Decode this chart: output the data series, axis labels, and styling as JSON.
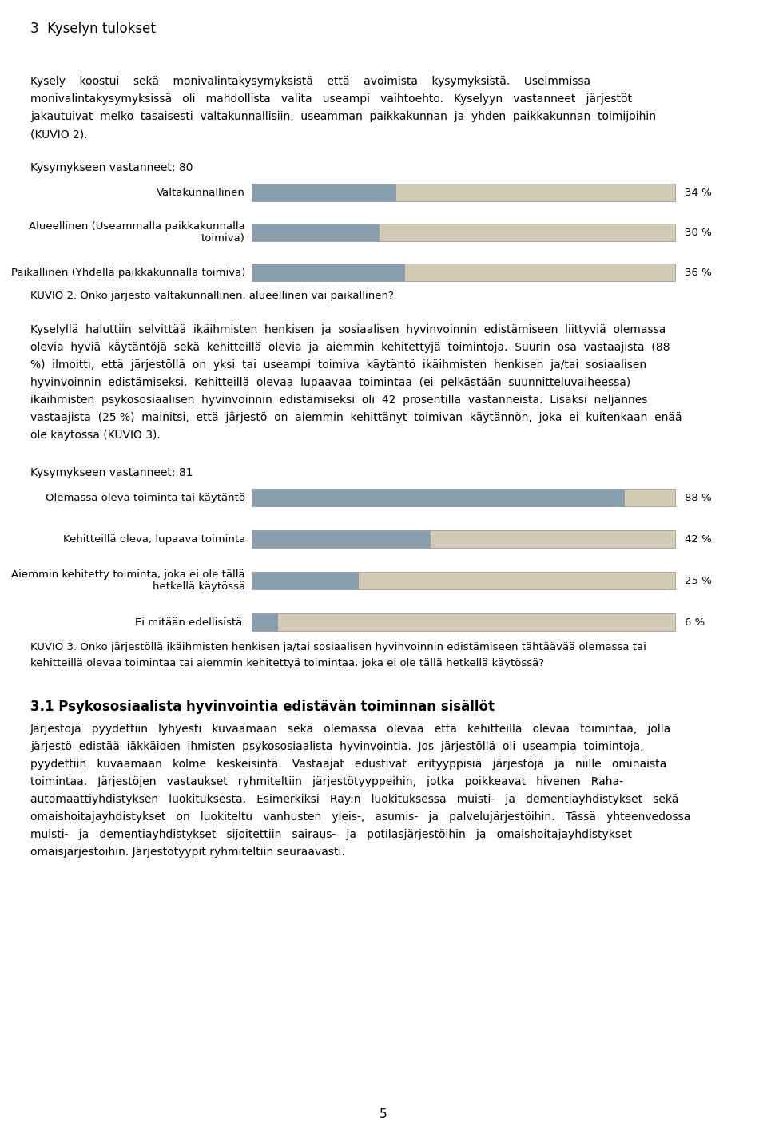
{
  "page_title": "3  Kyselyn tulokset",
  "para1_lines": [
    "Kysely    koostui    sekä    monivalintakysymyksistä    että    avoimista    kysymyksistä.    Useimmissa",
    "monivalintakysymyksissä   oli   mahdollista   valita   useampi   vaihtoehto.   Kyselyyn   vastanneet   järjestöt",
    "jakautuivat  melko  tasaisesti  valtakunnallisiin,  useamman  paikkakunnan  ja  yhden  paikkakunnan  toimijoihin",
    "(KUVIO 2)."
  ],
  "chart1_respondents": "Kysymykseen vastanneet: 80",
  "chart1_labels": [
    "Valtakunnallinen",
    "Alueellinen (Useammalla paikkakunnalla\ntoimiva)",
    "Paikallinen (Yhdellä paikkakunnalla toimiva)"
  ],
  "chart1_values": [
    34,
    30,
    36
  ],
  "chart1_caption": "KUVIO 2. Onko järjestö valtakunnallinen, alueellinen vai paikallinen?",
  "para2_lines": [
    "Kyselyllä  haluttiin  selvittää  ikäihmisten  henkisen  ja  sosiaalisen  hyvinvoinnin  edistämiseen  liittyviä  olemassa",
    "olevia  hyviä  käytäntöjä  sekä  kehitteillä  olevia  ja  aiemmin  kehitettyjä  toimintoja.  Suurin  osa  vastaajista  (88",
    "%)  ilmoitti,  että  järjestöllä  on  yksi  tai  useampi  toimiva  käytäntö  ikäihmisten  henkisen  ja/tai  sosiaalisen",
    "hyvinvoinnin  edistämiseksi.  Kehitteillä  olevaa  lupaavaa  toimintaa  (ei  pelkästään  suunnitteluvaiheessa)",
    "ikäihmisten  psykososiaalisen  hyvinvoinnin  edistämiseksi  oli  42  prosentilla  vastanneista.  Lisäksi  neljännes",
    "vastaajista  (25 %)  mainitsi,  että  järjestö  on  aiemmin  kehittänyt  toimivan  käytännön,  joka  ei  kuitenkaan  enää",
    "ole käytössä (KUVIO 3)."
  ],
  "chart2_respondents": "Kysymykseen vastanneet: 81",
  "chart2_labels": [
    "Olemassa oleva toiminta tai käytäntö",
    "Kehitteillä oleva, lupaava toiminta",
    "Aiemmin kehitetty toiminta, joka ei ole tällä\nhetkellä käytössä",
    "Ei mitään edellisistä."
  ],
  "chart2_values": [
    88,
    42,
    25,
    6
  ],
  "chart2_caption_lines": [
    "KUVIO 3. Onko järjestöllä ikäihmisten henkisen ja/tai sosiaalisen hyvinvoinnin edistämiseen tähtäävää olemassa tai",
    "kehitteillä olevaa toimintaa tai aiemmin kehitettyä toimintaa, joka ei ole tällä hetkellä käytössä?"
  ],
  "section_title": "3.1 Psykososiaalista hyvinvointia edistävän toiminnan sisällöt",
  "para3_lines": [
    "Järjestöjä   pyydettiin   lyhyesti   kuvaamaan   sekä   olemassa   olevaa   että   kehitteillä   olevaa   toimintaa,   jolla",
    "järjestö  edistää  iäkkäiden  ihmisten  psykososiaalista  hyvinvointia.  Jos  järjestöllä  oli  useampia  toimintoja,",
    "pyydettiin   kuvaamaan   kolme   keskeisintä.   Vastaajat   edustivat   erityyppisiä   järjestöjä   ja   niille   ominaista",
    "toimintaa.   Järjestöjen   vastaukset   ryhmiteltiin   järjestötyyppeihin,   jotka   poikkeavat   hivenen   Raha-",
    "automaattiyhdistyksen   luokituksesta.   Esimerkiksi   Ray:n   luokituksessa   muisti-   ja   dementiayhdistykset   sekä",
    "omaishoitajayhdistykset   on   luokiteltu   vanhusten   yleis-,   asumis-   ja   palvelujärjestöihin.   Tässä   yhteenvedossa",
    "muisti-   ja   dementiayhdistykset   sijoitettiin   sairaus-   ja   potilasjärjestöihin   ja   omaishoitajayhdistykset",
    "omaisjärjestöihin. Järjestötyypit ryhmiteltiin seuraavasti."
  ],
  "page_number": "5",
  "dark_bar_color": "#8a9fad",
  "light_bar_color": "#d3cab5",
  "bar_border_color": "#999999",
  "text_color": "#000000",
  "bg_color": "#ffffff",
  "title_fontsize": 12,
  "body_fontsize": 10,
  "label_fontsize": 9.5,
  "caption_fontsize": 9.5,
  "section_fontsize": 12
}
